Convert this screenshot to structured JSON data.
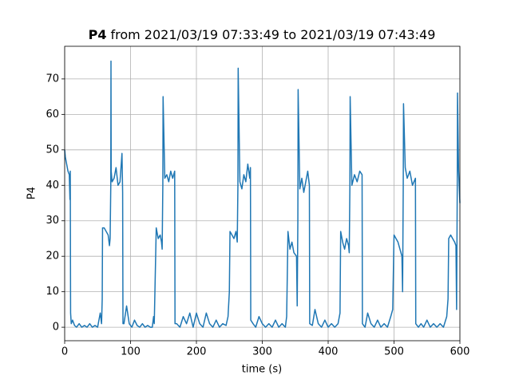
{
  "chart_data": {
    "type": "line",
    "title": {
      "bold": "P4",
      "rest": "from 2021/03/19 07:33:49 to 2021/03/19 07:43:49"
    },
    "xlabel": "time (s)",
    "ylabel": "P4",
    "xlim": [
      0,
      600
    ],
    "ylim": [
      -3.8,
      79.2
    ],
    "xticks": [
      0,
      100,
      200,
      300,
      400,
      500,
      600
    ],
    "yticks": [
      0,
      10,
      20,
      30,
      40,
      50,
      60,
      70
    ],
    "grid": true,
    "color": "#1f77b4",
    "x": [
      0,
      1,
      3,
      5,
      7,
      8,
      8.5,
      9,
      10,
      12,
      15,
      18,
      22,
      26,
      30,
      34,
      38,
      42,
      46,
      50,
      54,
      56,
      57,
      57.5,
      60,
      63,
      66,
      68,
      69,
      70,
      70.3,
      70.6,
      72,
      75,
      78,
      81,
      84,
      87,
      88,
      88.5,
      90,
      94,
      98,
      102,
      106,
      110,
      114,
      118,
      122,
      126,
      130,
      133,
      135,
      136,
      139,
      142,
      145,
      147,
      148,
      149,
      149.4,
      152,
      155,
      158,
      161,
      164,
      167,
      167.5,
      170,
      175,
      180,
      185,
      190,
      195,
      200,
      205,
      210,
      215,
      220,
      225,
      230,
      235,
      240,
      245,
      248,
      250,
      251,
      254,
      257,
      260,
      262,
      263,
      263.4,
      266,
      269,
      272,
      275,
      278,
      281,
      282,
      282.5,
      286,
      290,
      295,
      300,
      305,
      310,
      315,
      320,
      325,
      330,
      335,
      337,
      339,
      342,
      345,
      348,
      352,
      353,
      354,
      354.4,
      357,
      360,
      363,
      366,
      369,
      371.5,
      372,
      376,
      380,
      385,
      390,
      395,
      400,
      405,
      410,
      415,
      418,
      419,
      422,
      425,
      428,
      431,
      432,
      433,
      433.4,
      436,
      440,
      444,
      448,
      451.5,
      452,
      456,
      460,
      465,
      470,
      475,
      480,
      485,
      490,
      495,
      498,
      500,
      503,
      506,
      509,
      512,
      513,
      514,
      514.4,
      517,
      520,
      524,
      528,
      532.5,
      533,
      537,
      541,
      545,
      550,
      555,
      560,
      565,
      570,
      575,
      580,
      582,
      583,
      586,
      589,
      592,
      594,
      595,
      596,
      596.4,
      598,
      600
    ],
    "values": [
      50,
      48,
      46,
      44,
      43,
      36,
      44,
      4,
      1,
      2,
      0.5,
      0,
      1,
      0,
      0.5,
      0,
      1,
      0,
      0.5,
      0,
      4,
      1,
      8,
      28,
      28,
      27,
      26,
      23,
      25,
      40,
      75,
      44,
      41,
      42,
      45,
      40,
      41,
      49,
      38,
      1,
      1,
      6,
      1,
      0,
      2,
      0.5,
      0,
      1,
      0,
      0.5,
      0,
      0,
      3,
      1,
      28,
      25,
      26,
      24,
      22,
      40,
      65,
      42,
      43,
      41,
      44,
      42,
      44,
      1,
      1,
      0,
      3,
      1,
      4,
      0,
      4,
      1,
      0,
      4,
      1,
      0,
      2,
      0,
      1,
      0.5,
      3,
      10,
      27,
      26,
      25,
      27,
      24,
      40,
      73,
      41,
      39,
      43,
      41,
      46,
      42,
      45,
      2,
      1,
      0,
      3,
      1,
      0,
      1,
      0,
      2,
      0,
      1,
      0,
      3,
      27,
      22,
      24,
      21,
      20,
      6,
      30,
      67,
      39,
      42,
      38,
      41,
      44,
      40,
      1,
      0.5,
      5,
      1,
      0,
      2,
      0,
      1,
      0,
      1,
      4,
      27,
      24,
      22,
      25,
      23,
      21,
      40,
      65,
      40,
      43,
      41,
      44,
      43,
      1,
      0,
      4,
      1,
      0,
      2,
      0,
      1,
      0,
      3,
      5,
      26,
      25,
      24,
      22,
      20,
      10,
      40,
      63,
      45,
      42,
      44,
      40,
      42,
      1,
      0,
      1,
      0,
      2,
      0,
      1,
      0,
      1,
      0,
      3,
      8,
      25,
      26,
      25,
      24,
      23,
      5,
      40,
      66,
      44,
      35
    ]
  }
}
